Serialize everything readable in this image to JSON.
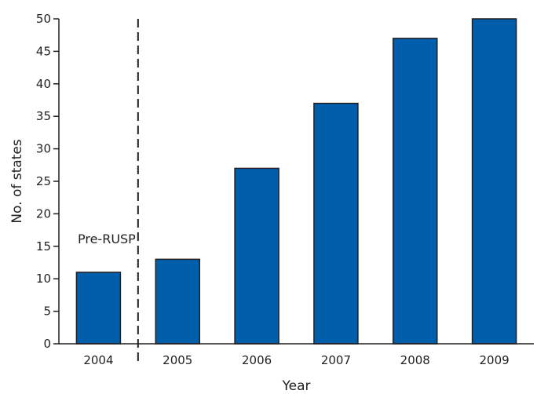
{
  "chart_data": {
    "type": "bar",
    "categories": [
      "2004",
      "2005",
      "2006",
      "2007",
      "2008",
      "2009"
    ],
    "values": [
      11,
      13,
      27,
      37,
      47,
      50
    ],
    "title": "",
    "xlabel": "Year",
    "ylabel": "No. of states",
    "ylim": [
      0,
      50
    ],
    "yticks": [
      0,
      5,
      10,
      15,
      20,
      25,
      30,
      35,
      40,
      45,
      50
    ],
    "grid": false,
    "legend": "none",
    "bar_color": "#005eaa",
    "bar_edge_color": "#231f20",
    "annotation": {
      "text": "Pre-RUSP",
      "divider_between": [
        "2004",
        "2005"
      ],
      "divider_style": "dashed"
    }
  }
}
